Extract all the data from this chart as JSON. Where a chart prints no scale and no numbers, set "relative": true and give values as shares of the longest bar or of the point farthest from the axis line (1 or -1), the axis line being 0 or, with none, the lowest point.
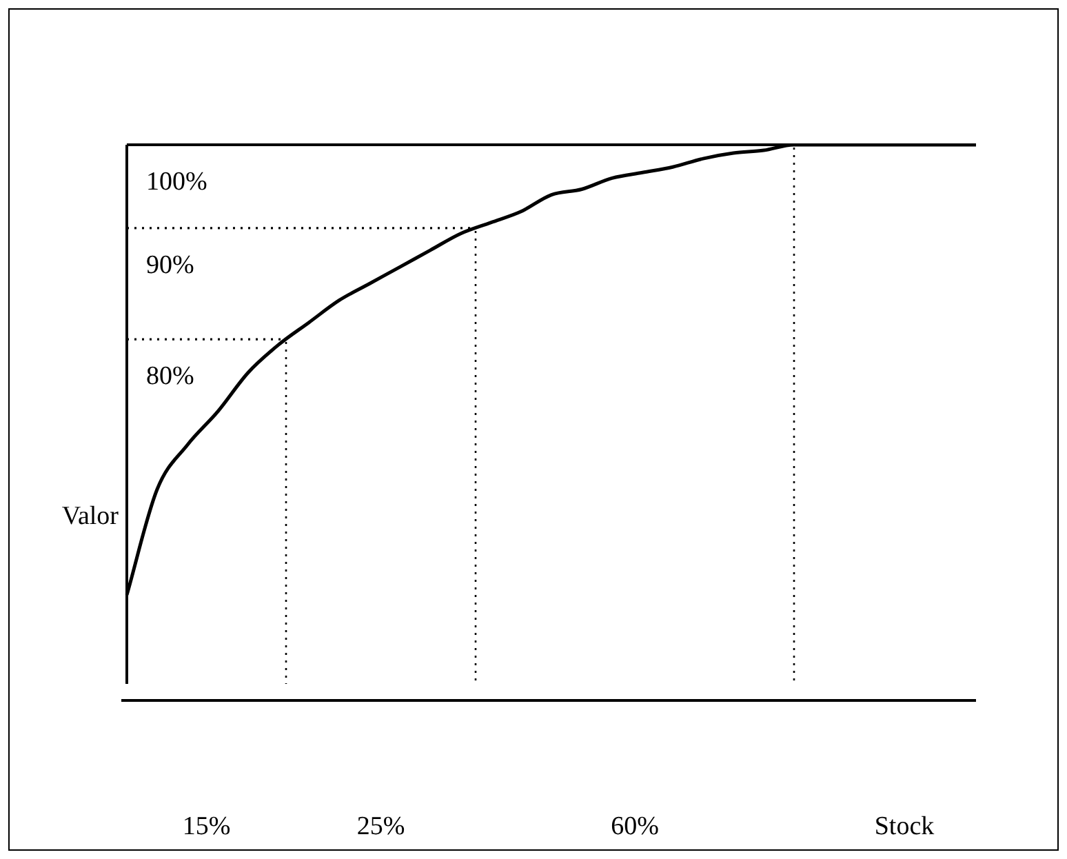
{
  "chart_data": {
    "type": "line",
    "relative": true,
    "xlabel": "Stock",
    "ylabel": "Valor",
    "categories": [
      null,
      null,
      null,
      null,
      null,
      null,
      null,
      null,
      null,
      null,
      null,
      null,
      null,
      null,
      null,
      null,
      null,
      null,
      null,
      null,
      null,
      null,
      null,
      null,
      null,
      null,
      null,
      null,
      null
    ],
    "series": [
      {
        "color": "#000000",
        "values": [
          0.19,
          0.38,
          0.46,
          0.52,
          0.59,
          0.64,
          0.68,
          0.72,
          0.75,
          0.78,
          0.81,
          0.84,
          0.86,
          0.88,
          0.91,
          0.92,
          0.94,
          0.95,
          0.96,
          0.975,
          0.985,
          0.99,
          1,
          1,
          1,
          1,
          1,
          1,
          1
        ]
      }
    ],
    "ref_lines": [
      {
        "axis": "y",
        "value": 1,
        "line_style": "solid"
      },
      {
        "axis": "y",
        "value": 0.85,
        "line_style": "dotted"
      },
      {
        "axis": "y",
        "value": 0.65,
        "line_style": "dotted"
      }
    ],
    "annotations": [
      "100%",
      "90%",
      "80%",
      "15%",
      "25%",
      "60%"
    ],
    "marker": "none",
    "line_style": "solid",
    "legend": false
  }
}
